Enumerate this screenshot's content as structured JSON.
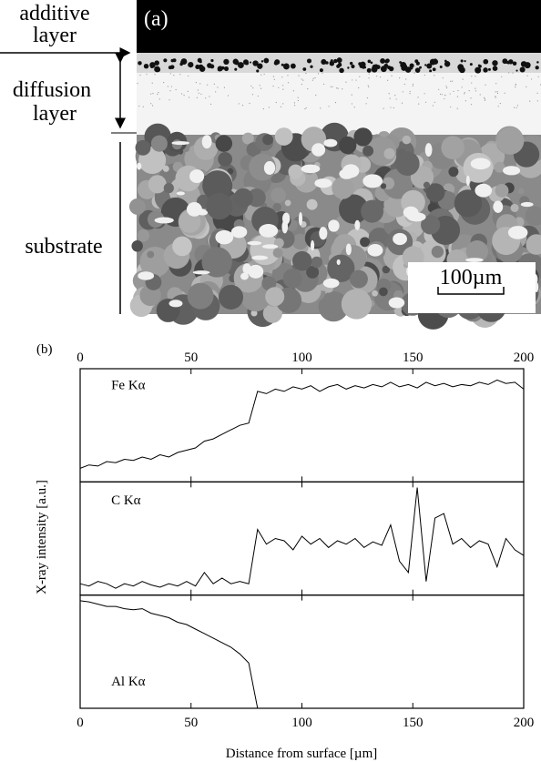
{
  "panel_a": {
    "label": "(a)",
    "additive_layer": [
      "additive",
      "layer"
    ],
    "diffusion_layer": [
      "diffusion",
      "layer"
    ],
    "substrate": "substrate",
    "scale_bar": "100µm"
  },
  "chart_data": {
    "type": "line",
    "panel_label": "(b)",
    "xlabel": "Distance from surface [µm]",
    "ylabel": "X-ray intensity [a.u.]",
    "xlim": [
      0,
      200
    ],
    "xticks": [
      0,
      50,
      100,
      150,
      200
    ],
    "x": [
      0,
      4,
      8,
      12,
      16,
      20,
      24,
      28,
      32,
      36,
      40,
      44,
      48,
      52,
      56,
      60,
      64,
      68,
      72,
      76,
      80,
      84,
      88,
      92,
      96,
      100,
      104,
      108,
      112,
      116,
      120,
      124,
      128,
      132,
      136,
      140,
      144,
      148,
      152,
      156,
      160,
      164,
      168,
      172,
      176,
      180,
      184,
      188,
      192,
      196,
      200
    ],
    "series": [
      {
        "name": "Fe Kα",
        "color": "#000000",
        "ylim": [
          0,
          1
        ],
        "values": [
          0.12,
          0.15,
          0.14,
          0.18,
          0.17,
          0.2,
          0.19,
          0.22,
          0.2,
          0.24,
          0.22,
          0.26,
          0.28,
          0.3,
          0.36,
          0.38,
          0.42,
          0.46,
          0.5,
          0.52,
          0.8,
          0.78,
          0.82,
          0.8,
          0.84,
          0.82,
          0.85,
          0.8,
          0.84,
          0.86,
          0.82,
          0.85,
          0.83,
          0.86,
          0.84,
          0.88,
          0.84,
          0.86,
          0.83,
          0.88,
          0.85,
          0.87,
          0.84,
          0.86,
          0.85,
          0.88,
          0.86,
          0.9,
          0.87,
          0.88,
          0.82
        ]
      },
      {
        "name": "C Kα",
        "color": "#000000",
        "ylim": [
          0,
          1
        ],
        "values": [
          0.1,
          0.08,
          0.12,
          0.1,
          0.06,
          0.1,
          0.08,
          0.12,
          0.09,
          0.07,
          0.1,
          0.08,
          0.12,
          0.08,
          0.2,
          0.1,
          0.15,
          0.1,
          0.12,
          0.1,
          0.58,
          0.45,
          0.5,
          0.48,
          0.4,
          0.52,
          0.45,
          0.5,
          0.42,
          0.48,
          0.45,
          0.5,
          0.42,
          0.47,
          0.44,
          0.62,
          0.3,
          0.2,
          0.95,
          0.12,
          0.68,
          0.72,
          0.45,
          0.5,
          0.42,
          0.48,
          0.45,
          0.25,
          0.5,
          0.4,
          0.35
        ]
      },
      {
        "name": "Al Kα",
        "color": "#000000",
        "ylim": [
          0,
          1
        ],
        "values": [
          0.95,
          0.94,
          0.92,
          0.9,
          0.9,
          0.88,
          0.87,
          0.88,
          0.84,
          0.82,
          0.8,
          0.76,
          0.74,
          0.7,
          0.66,
          0.62,
          0.58,
          0.54,
          0.48,
          0.4,
          0,
          null,
          null,
          null,
          null,
          null,
          null,
          null,
          null,
          null,
          null,
          null,
          null,
          null,
          null,
          null,
          null,
          null,
          null,
          null,
          null,
          null,
          null,
          null,
          null,
          null,
          null,
          null,
          null,
          null,
          null
        ]
      }
    ]
  }
}
